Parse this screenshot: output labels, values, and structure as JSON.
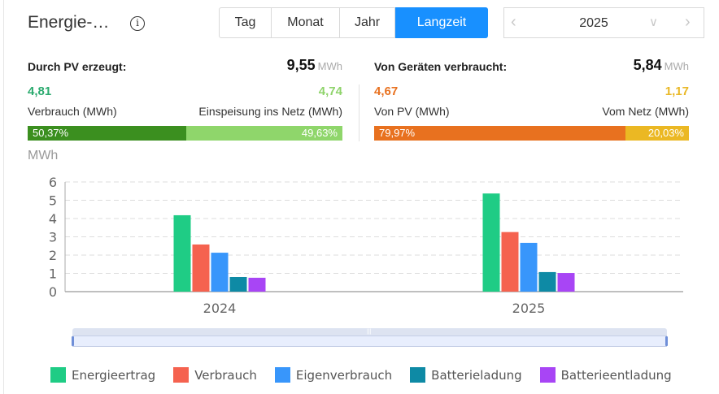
{
  "header": {
    "title": "Energie-…",
    "info_icon": "info-circle-icon",
    "tabs": [
      {
        "label": "Tag",
        "active": false
      },
      {
        "label": "Monat",
        "active": false
      },
      {
        "label": "Jahr",
        "active": false
      },
      {
        "label": "Langzeit",
        "active": true
      }
    ],
    "date_picker": {
      "value": "2025",
      "prev_icon": "chevron-left-icon",
      "dropdown_icon": "chevron-down-icon",
      "next_icon": "chevron-right-icon"
    }
  },
  "pv_panel": {
    "label": "Durch PV erzeugt:",
    "total": "9,55",
    "unit": "MWh",
    "value_left": "4,81",
    "value_right": "4,74",
    "sub_left": "Verbrauch (MWh)",
    "sub_right": "Einspeisung ins Netz (MWh)",
    "pct_left": "50,37%",
    "pct_right": "49,63%",
    "fraction_left": 0.5037,
    "colors": {
      "value_left": "#2aaa6e",
      "value_right": "#8ed36a",
      "bar_left": "#3b8f1f",
      "bar_right": "#8fd66b"
    }
  },
  "consumption_panel": {
    "label": "Von Geräten verbraucht:",
    "total": "5,84",
    "unit": "MWh",
    "value_left": "4,67",
    "value_right": "1,17",
    "sub_left": "Von PV (MWh)",
    "sub_right": "Vom Netz (MWh)",
    "pct_left": "79,97%",
    "pct_right": "20,03%",
    "fraction_left": 0.7997,
    "colors": {
      "value_left": "#e8711f",
      "value_right": "#e9b825",
      "bar_left": "#e8711f",
      "bar_right": "#ebb823"
    }
  },
  "chart_data": {
    "type": "bar",
    "ylabel": "MWh",
    "ylim": [
      0,
      6
    ],
    "yticks": [
      "0",
      "1",
      "2",
      "3",
      "4",
      "5",
      "6"
    ],
    "grid": true,
    "categories": [
      "2024",
      "2025"
    ],
    "series": [
      {
        "name": "Energieertrag",
        "color": "#1fcc85",
        "values": [
          4.18,
          5.37
        ]
      },
      {
        "name": "Verbrauch",
        "color": "#f5624f",
        "values": [
          2.58,
          3.26
        ]
      },
      {
        "name": "Eigenverbrauch",
        "color": "#3896fb",
        "values": [
          2.13,
          2.67
        ]
      },
      {
        "name": "Batterieladung",
        "color": "#0e8aa5",
        "values": [
          0.8,
          1.07
        ]
      },
      {
        "name": "Batterieentladung",
        "color": "#a845f5",
        "values": [
          0.76,
          1.02
        ]
      }
    ],
    "legend_position": "bottom"
  },
  "zoom_slider": {
    "range_start_pct": 0,
    "range_end_pct": 100
  }
}
